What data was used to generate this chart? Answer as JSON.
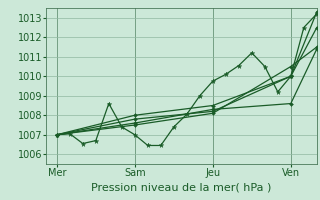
{
  "background_color": "#cce8d8",
  "grid_color": "#90b8a0",
  "line_color": "#1a5c28",
  "xlabel": "Pression niveau de la mer( hPa )",
  "xlabel_fontsize": 8,
  "tick_fontsize": 7,
  "ylim": [
    1005.5,
    1013.5
  ],
  "yticks": [
    1006,
    1007,
    1008,
    1009,
    1010,
    1011,
    1012,
    1013
  ],
  "xlim": [
    -8,
    200
  ],
  "day_positions": [
    0,
    60,
    120,
    180
  ],
  "day_labels": [
    "Mer",
    "Sam",
    "Jeu",
    "Ven"
  ],
  "vline_positions": [
    0,
    60,
    120,
    180
  ],
  "s1_x": [
    0,
    10,
    20,
    30,
    40,
    50,
    60,
    70,
    80,
    90,
    100,
    110,
    120,
    130,
    140,
    150,
    160,
    170,
    180,
    190,
    200
  ],
  "s1_y": [
    1007.0,
    1007.05,
    1006.55,
    1006.7,
    1008.6,
    1007.4,
    1007.0,
    1006.45,
    1006.45,
    1007.4,
    1008.05,
    1009.0,
    1009.75,
    1010.1,
    1010.55,
    1011.2,
    1010.5,
    1009.2,
    1010.0,
    1012.5,
    1013.2
  ],
  "s2_x": [
    0,
    60,
    120,
    180,
    200
  ],
  "s2_y": [
    1007.0,
    1007.5,
    1008.1,
    1010.5,
    1011.5
  ],
  "s3_x": [
    0,
    60,
    120,
    180,
    200
  ],
  "s3_y": [
    1007.0,
    1007.8,
    1008.2,
    1010.0,
    1013.3
  ],
  "s4_x": [
    0,
    60,
    120,
    180,
    200
  ],
  "s4_y": [
    1007.0,
    1007.6,
    1008.3,
    1008.6,
    1011.4
  ],
  "s5_x": [
    0,
    60,
    120,
    180,
    200
  ],
  "s5_y": [
    1007.0,
    1008.0,
    1008.5,
    1010.0,
    1012.5
  ]
}
